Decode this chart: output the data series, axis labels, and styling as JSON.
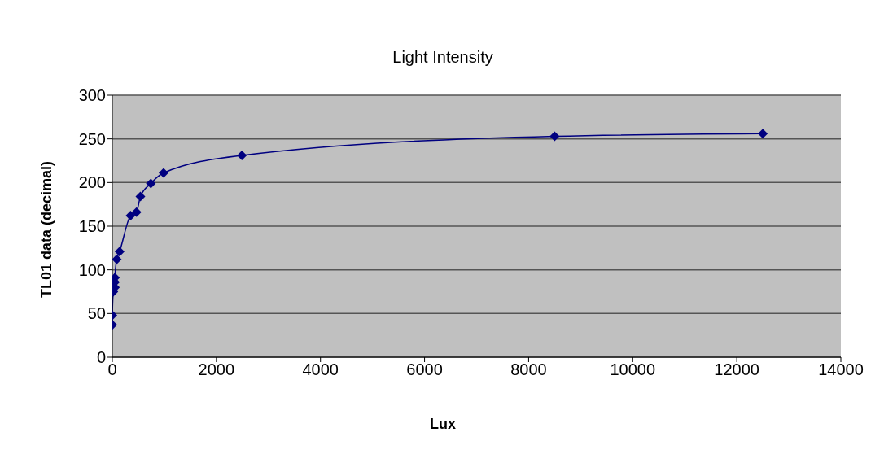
{
  "chart_data": {
    "type": "line",
    "title": "Light Intensity",
    "xlabel": "Lux",
    "ylabel": "TL01 data (decimal)",
    "x": [
      0,
      0,
      20,
      50,
      50,
      50,
      85,
      140,
      350,
      465,
      540,
      740,
      985,
      2490,
      8500,
      12500
    ],
    "series": [
      {
        "color": "#000080",
        "values": [
          37,
          48,
          75,
          80,
          86,
          91,
          112,
          121,
          162,
          166,
          184,
          199,
          211,
          231,
          253,
          256
        ]
      }
    ],
    "xlim": [
      0,
      14000
    ],
    "xticks": [
      0,
      2000,
      4000,
      6000,
      8000,
      10000,
      12000,
      14000
    ],
    "ylim": [
      0,
      300
    ],
    "yticks": [
      0,
      50,
      100,
      150,
      200,
      250,
      300
    ],
    "grid": "y",
    "marker": "diamond",
    "line_style": "solid"
  }
}
